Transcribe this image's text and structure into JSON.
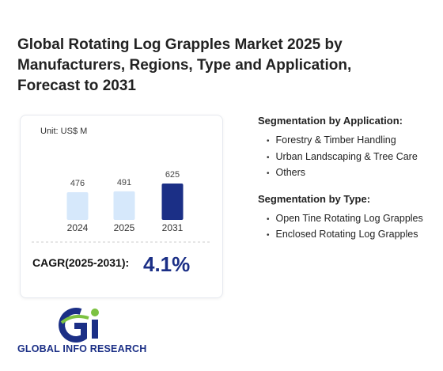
{
  "header": {
    "title": "Global Rotating Log Grapples Market 2025 by Manufacturers, Regions, Type and Application, Forecast to 2031"
  },
  "chart_data": {
    "type": "bar",
    "unit": "Unit: US$ M",
    "categories": [
      "2024",
      "2025",
      "2031"
    ],
    "values": [
      476,
      491,
      625
    ],
    "colors": [
      "#d6e8fb",
      "#d6e8fb",
      "#1b2f86"
    ]
  },
  "cagr": {
    "label": "CAGR(2025-2031):",
    "value": "4.1%"
  },
  "segments": [
    {
      "heading": "Segmentation by Application:",
      "items": [
        "Forestry & Timber Handling",
        "Urban Landscaping & Tree Care",
        "Others"
      ]
    },
    {
      "heading": "Segmentation by Type:",
      "items": [
        "Open Tine Rotating Log Grapples",
        "Enclosed Rotating Log Grapples"
      ]
    }
  ],
  "logo": {
    "text": "GLOBAL INFO RESEARCH"
  }
}
